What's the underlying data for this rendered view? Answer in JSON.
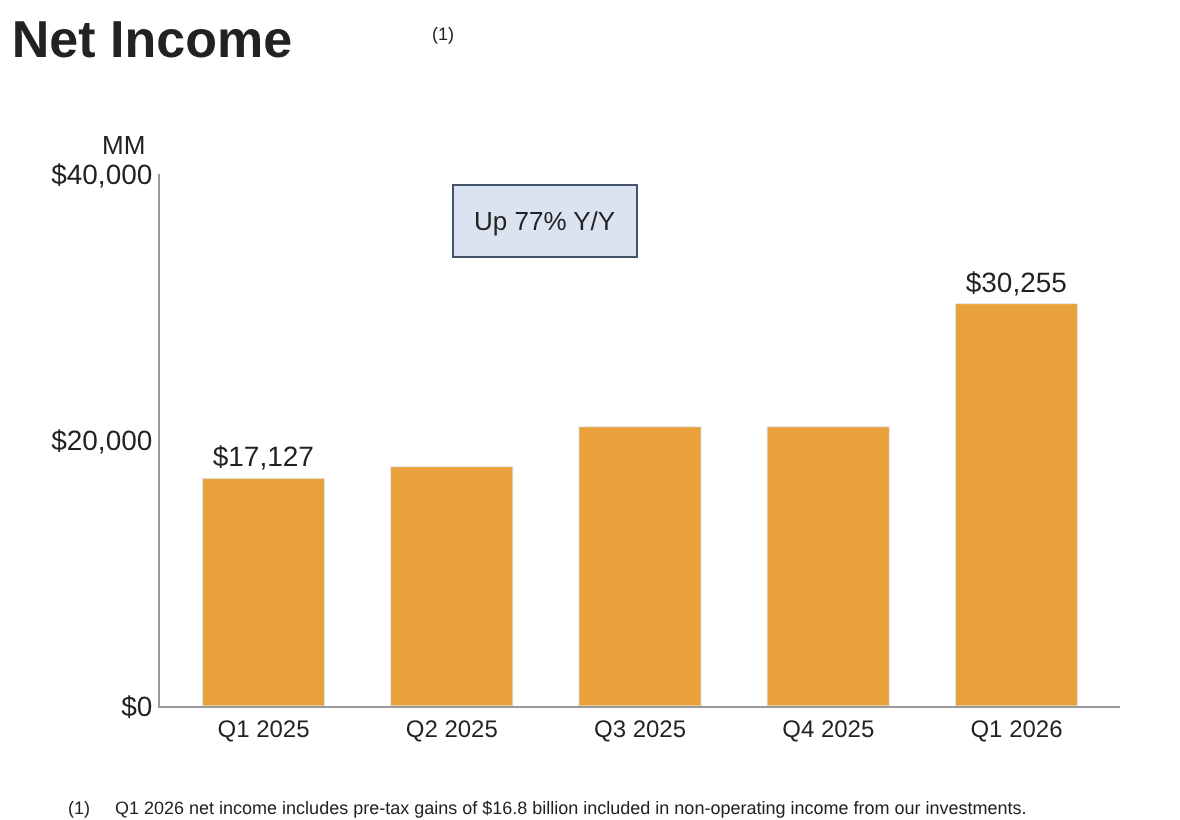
{
  "chart_data": {
    "type": "bar",
    "title": "Net Income",
    "ylabel": "MM",
    "categories": [
      "Q1 2025",
      "Q2 2025",
      "Q3 2025",
      "Q4 2025",
      "Q1 2026"
    ],
    "values": [
      17127,
      18000,
      21000,
      21000,
      30255
    ],
    "value_labels": [
      "$17,127",
      null,
      null,
      null,
      "$30,255"
    ],
    "color": "#e9a23b",
    "ylim": [
      0,
      40000
    ],
    "yticks": [
      {
        "value": 0,
        "label": "$0"
      },
      {
        "value": 20000,
        "label": "$20,000"
      },
      {
        "value": 40000,
        "label": "$40,000"
      }
    ],
    "legend": false,
    "annotations": [
      "Up 77% Y/Y",
      "(1)",
      "(1)     Q1 2026 net income includes pre-tax gains of $16.8 billion included in non-operating income from our investments."
    ]
  }
}
